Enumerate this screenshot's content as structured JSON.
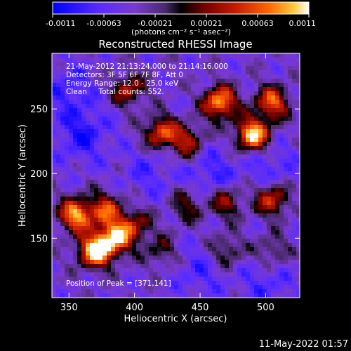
{
  "chart_data": {
    "type": "heatmap",
    "title": "Reconstructed RHESSI Image",
    "xlabel": "Heliocentric X (arcsec)",
    "ylabel": "Heliocentric Y (arcsec)",
    "xlim": [
      337,
      526
    ],
    "ylim": [
      104,
      293
    ],
    "x_ticks": [
      350,
      400,
      450,
      500
    ],
    "y_ticks": [
      150,
      200,
      250
    ],
    "x_tick_labels": [
      "350",
      "400",
      "450",
      "500"
    ],
    "y_tick_labels": [
      "150",
      "200",
      "250"
    ],
    "colorbar": {
      "range": [
        -0.0011,
        0.0011
      ],
      "tick_labels": [
        "-0.0011",
        "-0.00063",
        "-0.00021",
        "0.00021",
        "0.00063",
        "0.0011"
      ],
      "unit_label": "(photons cm⁻² s⁻¹ asec⁻²)",
      "colors": [
        "#0000ff",
        "#5a2bff",
        "#7a3acd",
        "#4a2a6a",
        "#000000",
        "#7a0000",
        "#c81e00",
        "#ff6400",
        "#ffc83c",
        "#ffffff"
      ]
    },
    "annotations": {
      "time_range": "21-May-2012 21:13:24.000 to 21:14:16.000",
      "detectors": "Detectors: 3F 5F 6F 7F 8F, Att 0",
      "energy": "Energy Range: 12.0 - 25.0 keV",
      "clean": "Clean     Total counts: 552.",
      "peak": "Position of Peak = [371,141]"
    },
    "hot_regions": [
      {
        "x": 370,
        "y": 140,
        "amp": 1.0
      },
      {
        "x": 385,
        "y": 150,
        "amp": 0.8
      },
      {
        "x": 355,
        "y": 168,
        "amp": 0.85
      },
      {
        "x": 378,
        "y": 172,
        "amp": 0.6
      },
      {
        "x": 400,
        "y": 160,
        "amp": 0.45
      },
      {
        "x": 465,
        "y": 255,
        "amp": 0.85
      },
      {
        "x": 490,
        "y": 230,
        "amp": 0.95
      },
      {
        "x": 505,
        "y": 255,
        "amp": 0.7
      },
      {
        "x": 420,
        "y": 232,
        "amp": 0.65
      },
      {
        "x": 395,
        "y": 265,
        "amp": 0.5
      },
      {
        "x": 440,
        "y": 225,
        "amp": 0.5
      },
      {
        "x": 505,
        "y": 180,
        "amp": 0.6
      },
      {
        "x": 470,
        "y": 178,
        "amp": 0.45
      },
      {
        "x": 440,
        "y": 175,
        "amp": 0.35
      },
      {
        "x": 420,
        "y": 140,
        "amp": 0.3
      },
      {
        "x": 470,
        "y": 140,
        "amp": 0.35
      },
      {
        "x": 505,
        "y": 140,
        "amp": 0.3
      }
    ],
    "cold_regions": [
      {
        "x": 360,
        "y": 230,
        "amp": 0.8
      },
      {
        "x": 350,
        "y": 265,
        "amp": 0.6
      },
      {
        "x": 460,
        "y": 200,
        "amp": 0.6
      },
      {
        "x": 505,
        "y": 205,
        "amp": 0.5
      },
      {
        "x": 450,
        "y": 125,
        "amp": 0.5
      },
      {
        "x": 500,
        "y": 115,
        "amp": 0.5
      },
      {
        "x": 410,
        "y": 200,
        "amp": 0.45
      }
    ]
  },
  "footer": {
    "timestamp": "11-May-2022 01:57"
  }
}
